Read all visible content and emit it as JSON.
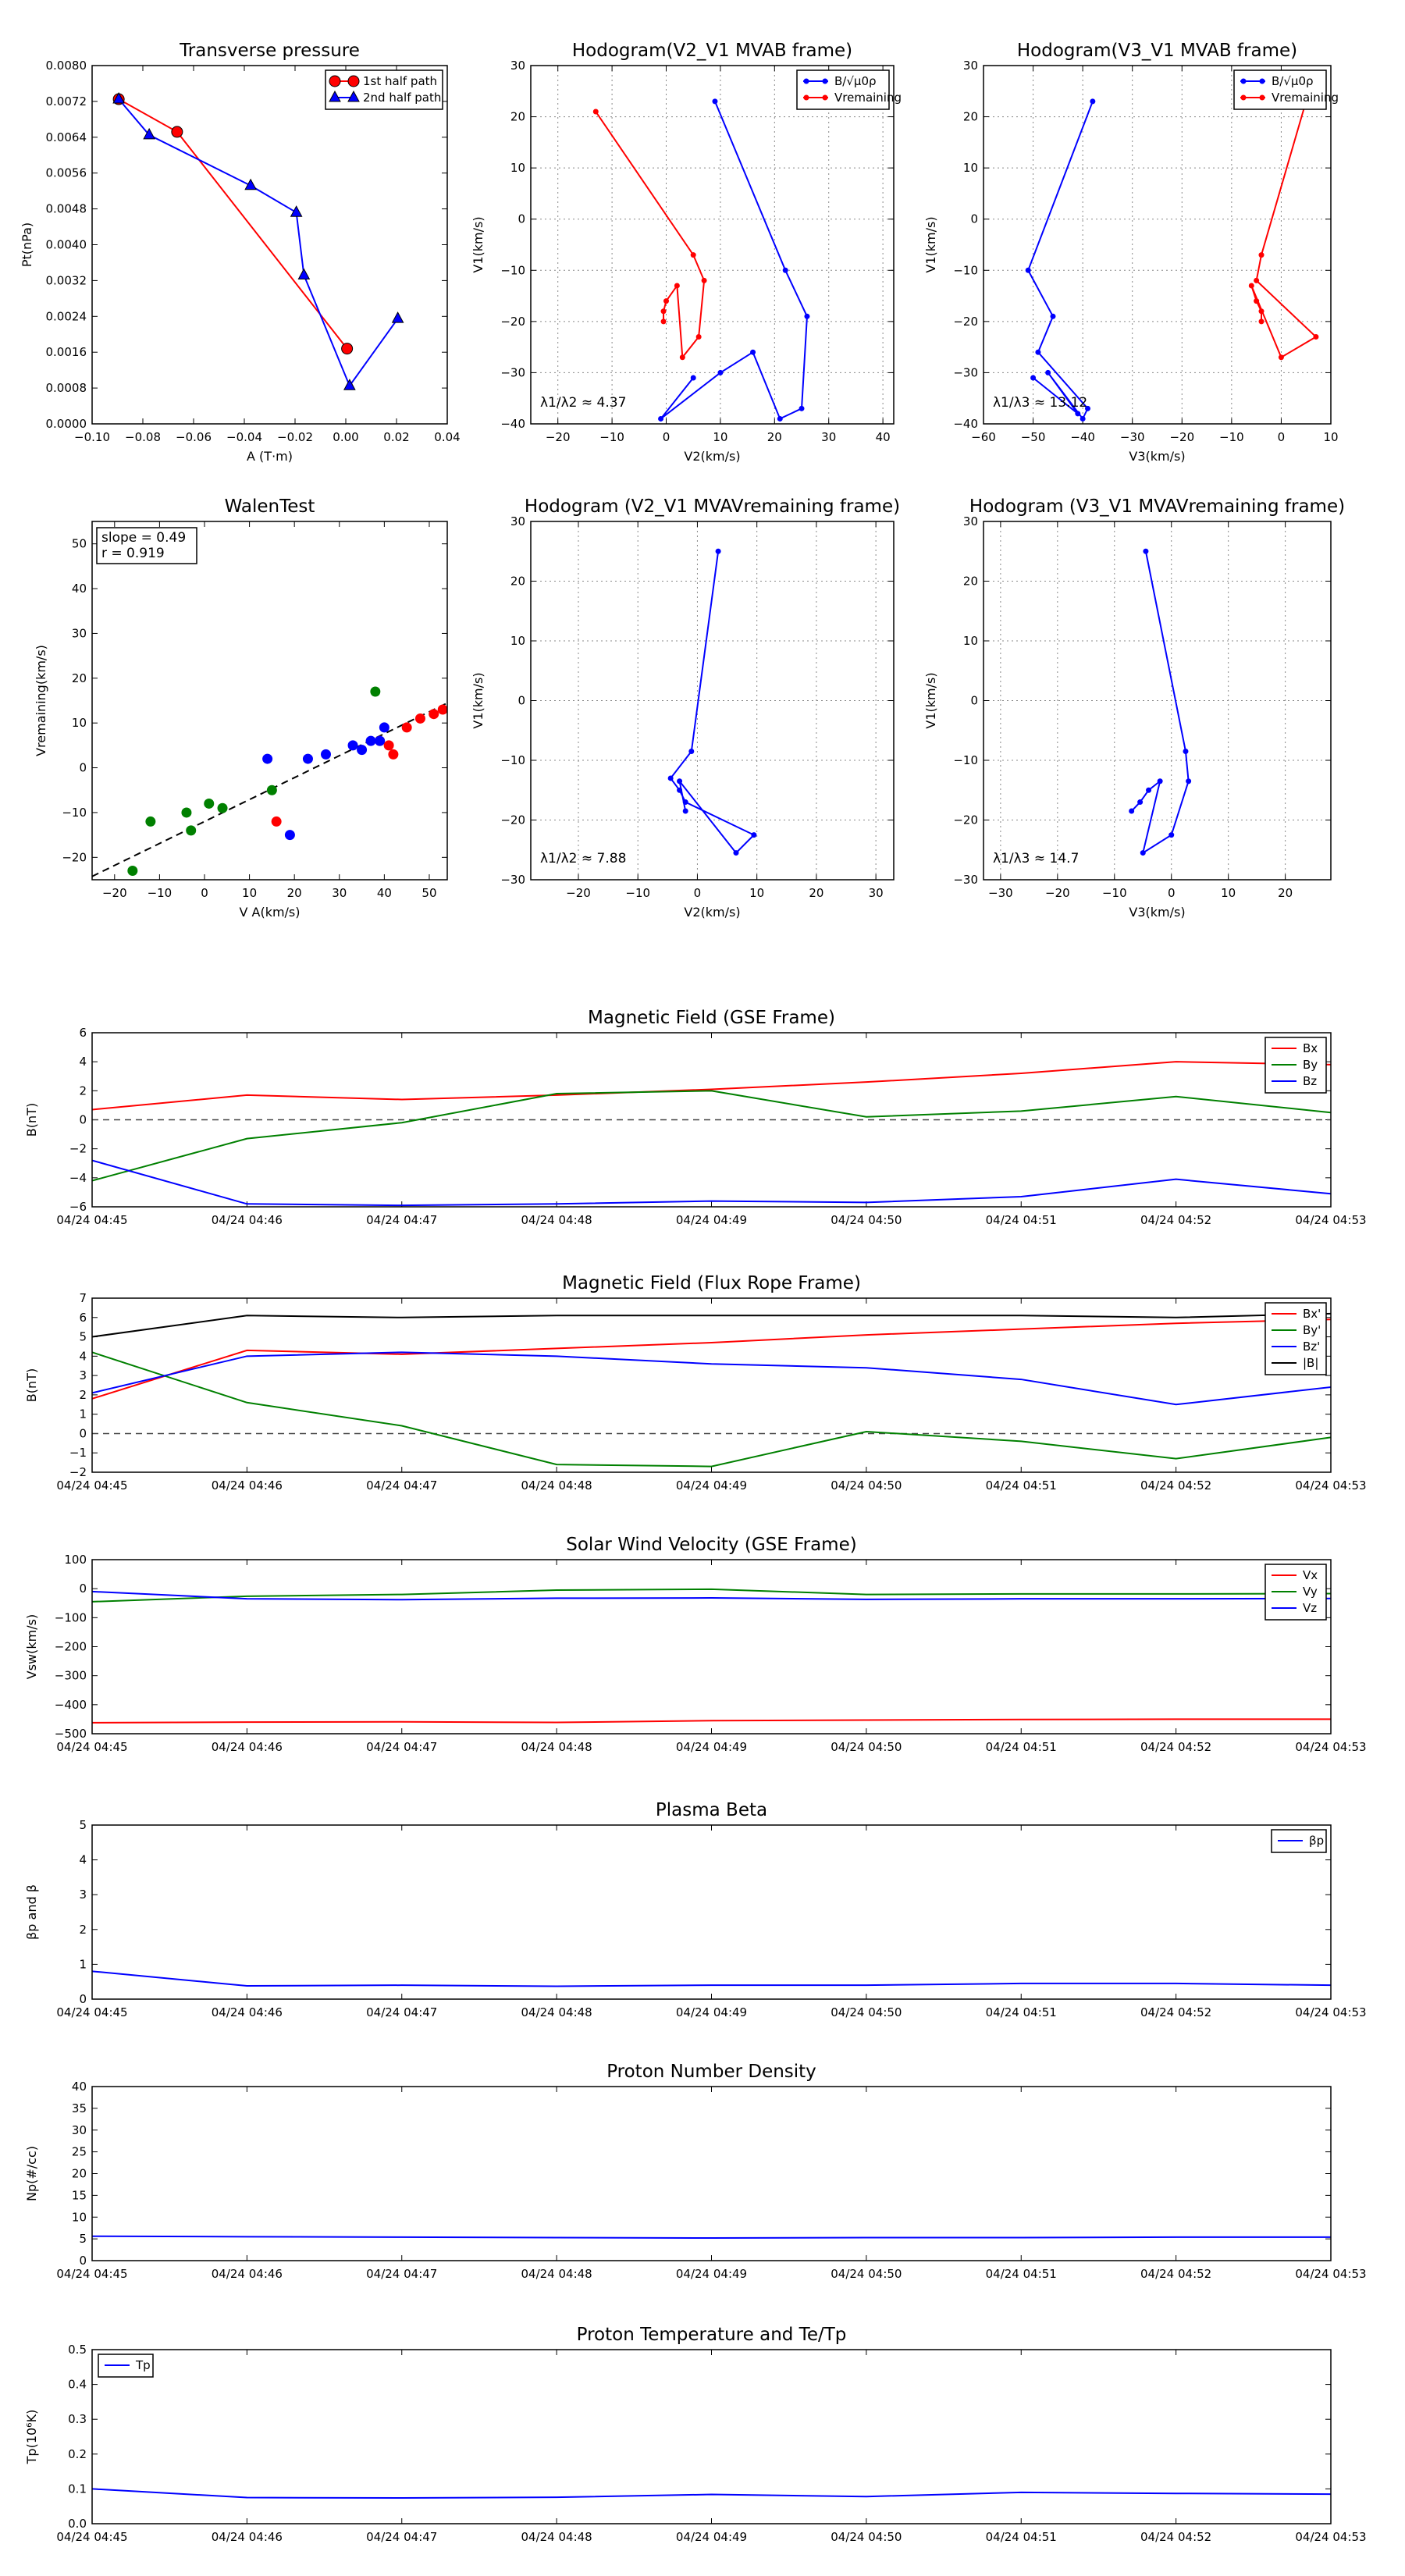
{
  "colors": {
    "red": "#ff0000",
    "blue": "#0000ff",
    "green": "#008000",
    "black": "#000000",
    "grid": "#888888"
  },
  "time_ticks": [
    "04/24 04:45",
    "04/24 04:46",
    "04/24 04:47",
    "04/24 04:48",
    "04/24 04:49",
    "04/24 04:50",
    "04/24 04:51",
    "04/24 04:52",
    "04/24 04:53"
  ],
  "chart_data": [
    {
      "id": "pt",
      "type": "line",
      "title": "Transverse pressure",
      "xlabel": "A (T·m)",
      "ylabel": "Pt(nPa)",
      "xlim": [
        -0.1,
        0.04
      ],
      "ylim": [
        0,
        0.008
      ],
      "xticks": [
        -0.1,
        -0.08,
        -0.06,
        -0.04,
        -0.02,
        0.0,
        0.02,
        0.04
      ],
      "xtick_labels": [
        "−0.10",
        "−0.08",
        "−0.06",
        "−0.04",
        "−0.02",
        "0.00",
        "0.02",
        "0.04"
      ],
      "yticks": [
        0,
        0.0008,
        0.0016,
        0.0024,
        0.0032,
        0.004,
        0.0048,
        0.0056,
        0.0064,
        0.0072,
        0.008
      ],
      "ytick_labels": [
        "0.0000",
        "0.0008",
        "0.0016",
        "0.0024",
        "0.0032",
        "0.0040",
        "0.0048",
        "0.0056",
        "0.0064",
        "0.0072",
        "0.0080"
      ],
      "legend": "top-right",
      "series": [
        {
          "name": "1st half path",
          "color": "red",
          "marker": "circle",
          "x": [
            -0.0895,
            -0.0665,
            0.0005
          ],
          "y": [
            0.00725,
            0.00652,
            0.00168
          ]
        },
        {
          "name": "2nd half path",
          "color": "blue",
          "marker": "triangle",
          "x": [
            -0.0895,
            -0.0775,
            -0.0375,
            -0.0195,
            -0.0165,
            0.0015,
            0.0205
          ],
          "y": [
            0.00725,
            0.00645,
            0.00532,
            0.00472,
            0.00332,
            0.00085,
            0.00235
          ]
        }
      ]
    },
    {
      "id": "h1",
      "type": "line",
      "title": "Hodogram(V2_V1 MVAB frame)",
      "xlabel": "V2(km/s)",
      "ylabel": "V1(km/s)",
      "xlim": [
        -25,
        42
      ],
      "ylim": [
        -40,
        30
      ],
      "grid": true,
      "xticks": [
        -20,
        -10,
        0,
        10,
        20,
        30,
        40
      ],
      "xtick_labels": [
        "−20",
        "−10",
        "0",
        "10",
        "20",
        "30",
        "40"
      ],
      "yticks": [
        -40,
        -30,
        -20,
        -10,
        0,
        10,
        20,
        30
      ],
      "ytick_labels": [
        "−40",
        "−30",
        "−20",
        "−10",
        "0",
        "10",
        "20",
        "30"
      ],
      "legend": "top-right",
      "annotation": "λ1/λ2 ≈ 4.37",
      "series": [
        {
          "name": "B/√μ0ρ",
          "color": "blue",
          "marker": "dot",
          "x": [
            9,
            22,
            26,
            25,
            21,
            16,
            10,
            -1,
            5
          ],
          "y": [
            23,
            -10,
            -19,
            -37,
            -39,
            -26,
            -30,
            -39,
            -31
          ]
        },
        {
          "name": "Vremaining",
          "color": "red",
          "marker": "dot",
          "x": [
            -13,
            5,
            7,
            6,
            3,
            2,
            0,
            -0.5,
            -0.5
          ],
          "y": [
            21,
            -7,
            -12,
            -23,
            -27,
            -13,
            -16,
            -18,
            -20
          ]
        }
      ]
    },
    {
      "id": "h2",
      "type": "line",
      "title": "Hodogram(V3_V1 MVAB frame)",
      "xlabel": "V3(km/s)",
      "ylabel": "V1(km/s)",
      "xlim": [
        -60,
        10
      ],
      "ylim": [
        -40,
        30
      ],
      "grid": true,
      "xticks": [
        -60,
        -50,
        -40,
        -30,
        -20,
        -10,
        0,
        10
      ],
      "xtick_labels": [
        "−60",
        "−50",
        "−40",
        "−30",
        "−20",
        "−10",
        "0",
        "10"
      ],
      "yticks": [
        -40,
        -30,
        -20,
        -10,
        0,
        10,
        20,
        30
      ],
      "ytick_labels": [
        "−40",
        "−30",
        "−20",
        "−10",
        "0",
        "10",
        "20",
        "30"
      ],
      "legend": "top-right",
      "annotation": "λ1/λ3 ≈ 13.12",
      "series": [
        {
          "name": "B/√μ0ρ",
          "color": "blue",
          "marker": "dot",
          "x": [
            -38,
            -51,
            -46,
            -49,
            -39,
            -40,
            -47,
            -41,
            -50
          ],
          "y": [
            23,
            -10,
            -19,
            -26,
            -37,
            -39,
            -30,
            -38,
            -31
          ]
        },
        {
          "name": "Vremaining",
          "color": "red",
          "marker": "dot",
          "x": [
            5,
            -4,
            -5,
            7,
            0,
            -6,
            -5,
            -4,
            -4
          ],
          "y": [
            23,
            -7,
            -12,
            -23,
            -27,
            -13,
            -16,
            -18,
            -20
          ]
        }
      ]
    },
    {
      "id": "walen",
      "type": "scatter",
      "title": "WalenTest",
      "xlabel": "V A(km/s)",
      "ylabel": "Vremaining(km/s)",
      "xlim": [
        -25,
        54
      ],
      "ylim": [
        -25,
        55
      ],
      "xticks": [
        -20,
        -10,
        0,
        10,
        20,
        30,
        40,
        50
      ],
      "xtick_labels": [
        "−20",
        "−10",
        "0",
        "10",
        "20",
        "30",
        "40",
        "50"
      ],
      "yticks": [
        -20,
        -10,
        0,
        10,
        20,
        30,
        40,
        50
      ],
      "ytick_labels": [
        "−20",
        "−10",
        "0",
        "10",
        "20",
        "30",
        "40",
        "50"
      ],
      "textbox": [
        "slope = 0.49",
        "r = 0.919"
      ],
      "fit": {
        "slope": 0.49,
        "intercept": -12
      },
      "series": [
        {
          "color": "green",
          "x": [
            -16,
            -12,
            -4,
            -3,
            1,
            4,
            15,
            38
          ],
          "y": [
            -23,
            -12,
            -10,
            -14,
            -8,
            -9,
            -5,
            17
          ]
        },
        {
          "color": "red",
          "x": [
            16,
            39,
            41,
            42,
            45,
            48,
            51,
            53
          ],
          "y": [
            -12,
            6,
            5,
            3,
            9,
            11,
            12,
            13
          ]
        },
        {
          "color": "blue",
          "x": [
            14,
            19,
            23,
            27,
            33,
            35,
            37,
            39,
            40
          ],
          "y": [
            2,
            -15,
            2,
            3,
            5,
            4,
            6,
            6,
            9
          ]
        }
      ]
    },
    {
      "id": "h3",
      "type": "line",
      "title": "Hodogram (V2_V1 MVAVremaining frame)",
      "xlabel": "V2(km/s)",
      "ylabel": "V1(km/s)",
      "xlim": [
        -28,
        33
      ],
      "ylim": [
        -30,
        30
      ],
      "grid": true,
      "xticks": [
        -20,
        -10,
        0,
        10,
        20,
        30
      ],
      "xtick_labels": [
        "−20",
        "−10",
        "0",
        "10",
        "20",
        "30"
      ],
      "yticks": [
        -30,
        -20,
        -10,
        0,
        10,
        20,
        30
      ],
      "ytick_labels": [
        "−30",
        "−20",
        "−10",
        "0",
        "10",
        "20",
        "30"
      ],
      "annotation": "λ1/λ2 ≈ 7.88",
      "series": [
        {
          "color": "blue",
          "marker": "dot",
          "x": [
            3.5,
            -1,
            -4.5,
            -3,
            -2,
            9.5,
            6.5,
            -3,
            -2
          ],
          "y": [
            25,
            -8.5,
            -13,
            -15,
            -17,
            -22.5,
            -25.5,
            -13.5,
            -18.5
          ]
        }
      ]
    },
    {
      "id": "h4",
      "type": "line",
      "title": "Hodogram (V3_V1 MVAVremaining frame)",
      "xlabel": "V3(km/s)",
      "ylabel": "V1(km/s)",
      "xlim": [
        -33,
        28
      ],
      "ylim": [
        -30,
        30
      ],
      "grid": true,
      "xticks": [
        -30,
        -20,
        -10,
        0,
        10,
        20
      ],
      "xtick_labels": [
        "−30",
        "−20",
        "−10",
        "0",
        "10",
        "20"
      ],
      "yticks": [
        -30,
        -20,
        -10,
        0,
        10,
        20,
        30
      ],
      "ytick_labels": [
        "−30",
        "−20",
        "−10",
        "0",
        "10",
        "20",
        "30"
      ],
      "annotation": "λ1/λ3 ≈ 14.7",
      "series": [
        {
          "color": "blue",
          "marker": "dot",
          "x": [
            -4.5,
            2.5,
            3,
            0,
            -5,
            -2,
            -4,
            -5.5,
            -7
          ],
          "y": [
            25,
            -8.5,
            -13.5,
            -22.5,
            -25.5,
            -13.5,
            -15,
            -17,
            -18.5
          ]
        }
      ]
    },
    {
      "id": "bgse",
      "type": "line",
      "title": "Magnetic Field (GSE Frame)",
      "ylabel": "B(nT)",
      "xlim": [
        0,
        8
      ],
      "ylim": [
        -6,
        6
      ],
      "zero_line": true,
      "yticks": [
        -6,
        -4,
        -2,
        0,
        2,
        4,
        6
      ],
      "ytick_labels": [
        "−6",
        "−4",
        "−2",
        "0",
        "2",
        "4",
        "6"
      ],
      "legend": "top-right",
      "x": [
        0,
        1,
        2,
        3,
        4,
        5,
        6,
        7,
        8
      ],
      "series": [
        {
          "name": "Bx",
          "color": "red",
          "values": [
            0.7,
            1.7,
            1.4,
            1.7,
            2.1,
            2.6,
            3.2,
            4.0,
            3.8
          ]
        },
        {
          "name": "By",
          "color": "green",
          "values": [
            -4.2,
            -1.3,
            -0.2,
            1.8,
            2.0,
            0.2,
            0.6,
            1.6,
            0.5
          ]
        },
        {
          "name": "Bz",
          "color": "blue",
          "values": [
            -2.8,
            -5.8,
            -5.9,
            -5.8,
            -5.6,
            -5.7,
            -5.3,
            -4.1,
            -5.1
          ]
        }
      ]
    },
    {
      "id": "bfr",
      "type": "line",
      "title": "Magnetic Field (Flux Rope Frame)",
      "ylabel": "B(nT)",
      "xlim": [
        0,
        8
      ],
      "ylim": [
        -2,
        7
      ],
      "zero_line": true,
      "yticks": [
        -2,
        -1,
        0,
        1,
        2,
        3,
        4,
        5,
        6,
        7
      ],
      "ytick_labels": [
        "−2",
        "−1",
        "0",
        "1",
        "2",
        "3",
        "4",
        "5",
        "6",
        "7"
      ],
      "legend": "top-right",
      "x": [
        0,
        1,
        2,
        3,
        4,
        5,
        6,
        7,
        8
      ],
      "series": [
        {
          "name": "Bx'",
          "color": "red",
          "values": [
            1.8,
            4.3,
            4.1,
            4.4,
            4.7,
            5.1,
            5.4,
            5.7,
            5.9
          ]
        },
        {
          "name": "By'",
          "color": "green",
          "values": [
            4.2,
            1.6,
            0.4,
            -1.6,
            -1.7,
            0.1,
            -0.4,
            -1.3,
            -0.2
          ]
        },
        {
          "name": "Bz'",
          "color": "blue",
          "values": [
            2.1,
            4.0,
            4.2,
            4.0,
            3.6,
            3.4,
            2.8,
            1.5,
            2.4
          ]
        },
        {
          "name": "|B|",
          "color": "black",
          "values": [
            5.0,
            6.1,
            6.0,
            6.1,
            6.1,
            6.1,
            6.1,
            6.0,
            6.2
          ]
        }
      ]
    },
    {
      "id": "vsw",
      "type": "line",
      "title": "Solar Wind Velocity (GSE Frame)",
      "ylabel": "Vsw(km/s)",
      "xlim": [
        0,
        8
      ],
      "ylim": [
        -500,
        100
      ],
      "yticks": [
        -500,
        -400,
        -300,
        -200,
        -100,
        0,
        100
      ],
      "ytick_labels": [
        "−500",
        "−400",
        "−300",
        "−200",
        "−100",
        "0",
        "100"
      ],
      "legend": "top-right",
      "x": [
        0,
        1,
        2,
        3,
        4,
        5,
        6,
        7,
        8
      ],
      "series": [
        {
          "name": "Vx",
          "color": "red",
          "values": [
            -462,
            -460,
            -459,
            -461,
            -455,
            -453,
            -451,
            -450,
            -450
          ]
        },
        {
          "name": "Vy",
          "color": "green",
          "values": [
            -45,
            -26,
            -20,
            -5,
            -2,
            -20,
            -18,
            -18,
            -17
          ]
        },
        {
          "name": "Vz",
          "color": "blue",
          "values": [
            -10,
            -35,
            -38,
            -33,
            -32,
            -37,
            -35,
            -35,
            -34
          ]
        }
      ]
    },
    {
      "id": "beta",
      "type": "line",
      "title": "Plasma Beta",
      "ylabel": "βp and β",
      "xlim": [
        0,
        8
      ],
      "ylim": [
        0,
        5
      ],
      "yticks": [
        0,
        1,
        2,
        3,
        4,
        5
      ],
      "ytick_labels": [
        "0",
        "1",
        "2",
        "3",
        "4",
        "5"
      ],
      "legend": "top-right",
      "x": [
        0,
        1,
        2,
        3,
        4,
        5,
        6,
        7,
        8
      ],
      "series": [
        {
          "name": "βp",
          "color": "blue",
          "values": [
            0.8,
            0.38,
            0.4,
            0.37,
            0.4,
            0.4,
            0.45,
            0.45,
            0.4
          ]
        }
      ]
    },
    {
      "id": "np",
      "type": "line",
      "title": "Proton Number Density",
      "ylabel": "Np(#/cc)",
      "xlim": [
        0,
        8
      ],
      "ylim": [
        0,
        40
      ],
      "yticks": [
        0,
        5,
        10,
        15,
        20,
        25,
        30,
        35,
        40
      ],
      "ytick_labels": [
        "0",
        "5",
        "10",
        "15",
        "20",
        "25",
        "30",
        "35",
        "40"
      ],
      "x": [
        0,
        1,
        2,
        3,
        4,
        5,
        6,
        7,
        8
      ],
      "series": [
        {
          "color": "blue",
          "values": [
            5.6,
            5.5,
            5.4,
            5.3,
            5.2,
            5.3,
            5.3,
            5.4,
            5.4
          ]
        }
      ]
    },
    {
      "id": "tp",
      "type": "line",
      "title": "Proton Temperature and Te/Tp",
      "ylabel": "Tp(10⁶K)",
      "xlim": [
        0,
        8
      ],
      "ylim": [
        0,
        0.5
      ],
      "yticks": [
        0,
        0.1,
        0.2,
        0.3,
        0.4,
        0.5
      ],
      "ytick_labels": [
        "0.0",
        "0.1",
        "0.2",
        "0.3",
        "0.4",
        "0.5"
      ],
      "legend": "top-left",
      "x": [
        0,
        1,
        2,
        3,
        4,
        5,
        6,
        7,
        8
      ],
      "series": [
        {
          "name": "Tp",
          "color": "blue",
          "values": [
            0.1,
            0.075,
            0.074,
            0.076,
            0.084,
            0.078,
            0.09,
            0.087,
            0.085
          ]
        }
      ]
    }
  ]
}
